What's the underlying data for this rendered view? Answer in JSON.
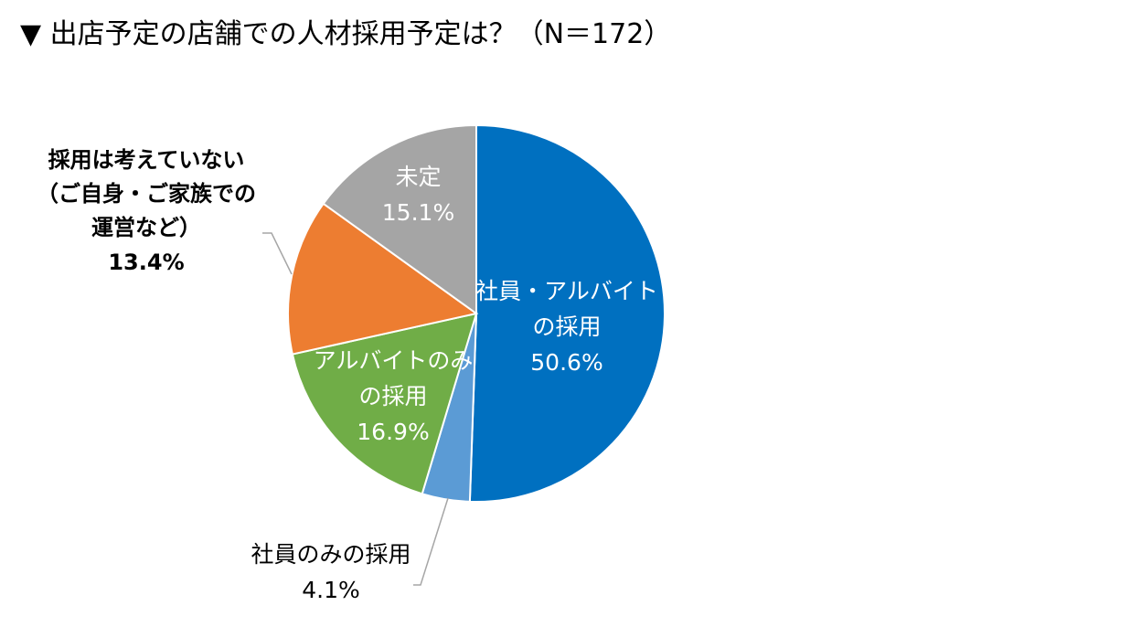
{
  "title": "▼ 出店予定の店舗での人材採用予定は？（N＝172）",
  "chart_data": {
    "type": "pie",
    "slices": [
      {
        "label_lines": [
          "社員・アルバイト",
          "の採用"
        ],
        "value": 50.6,
        "value_text": "50.6%",
        "color": "#0070c0"
      },
      {
        "label_lines": [
          "社員のみの採用"
        ],
        "value": 4.1,
        "value_text": "4.1%",
        "color": "#5b9bd5"
      },
      {
        "label_lines": [
          "アルバイトのみ",
          "の採用"
        ],
        "value": 16.9,
        "value_text": "16.9%",
        "color": "#70ad47"
      },
      {
        "label_lines": [
          "採用は考えていない",
          "（ご自身・ご家族での",
          "運営など）"
        ],
        "value": 13.4,
        "value_text": "13.4%",
        "color": "#ed7d31"
      },
      {
        "label_lines": [
          "未定"
        ],
        "value": 15.1,
        "value_text": "15.1%",
        "color": "#a5a5a5"
      }
    ]
  }
}
